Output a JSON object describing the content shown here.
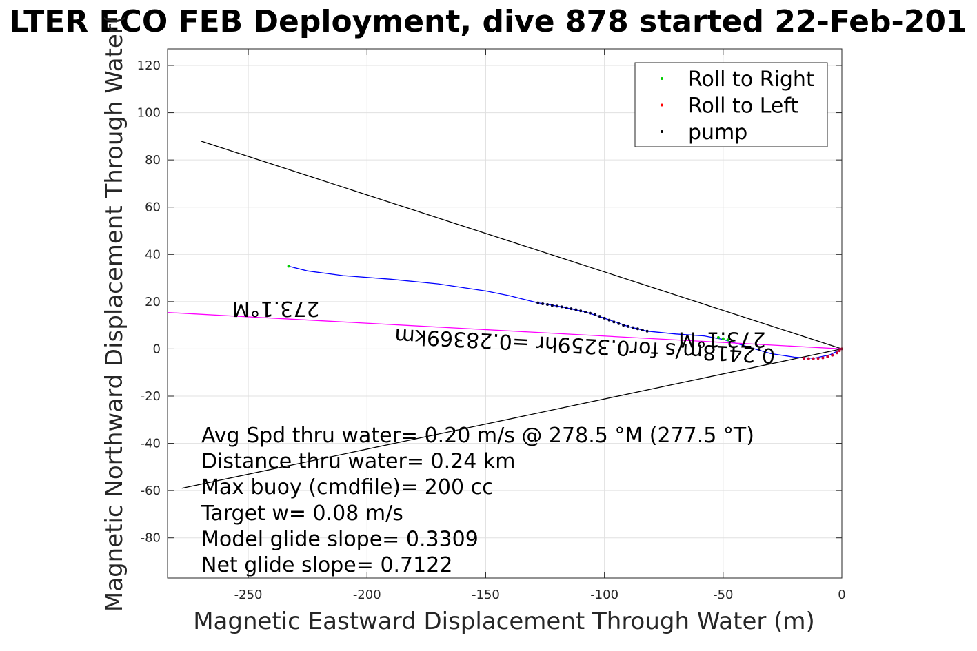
{
  "chart_data": {
    "type": "line",
    "title": "LTER ECO FEB Deployment, dive 878 started 22-Feb-201",
    "xlabel": "Magnetic Eastward Displacement Through Water (m)",
    "ylabel": "Magnetic Northward Displacement Through Water(",
    "xlim": [
      -284,
      0
    ],
    "ylim": [
      -97,
      127
    ],
    "x_ticks": [
      "-250",
      "-200",
      "-150",
      "-100",
      "-50",
      "0"
    ],
    "y_ticks": [
      "120",
      "100",
      "80",
      "60",
      "40",
      "20",
      "0",
      "-20",
      "-40",
      "-60",
      "-80"
    ],
    "grid": true,
    "legend_position": "top-right",
    "legend": [
      {
        "label": "Roll to Right",
        "color": "#00cc00"
      },
      {
        "label": "Roll to Left",
        "color": "#ff0000"
      },
      {
        "label": "pump",
        "color": "#000000"
      }
    ],
    "series": [
      {
        "type": "line",
        "color": "#0000ff",
        "points": [
          [
            -233,
            35
          ],
          [
            -225,
            33
          ],
          [
            -210,
            31
          ],
          [
            -190,
            29.5
          ],
          [
            -170,
            27.5
          ],
          [
            -150,
            24.5
          ],
          [
            -140,
            22.5
          ],
          [
            -128,
            19.5
          ],
          [
            -118,
            17.8
          ],
          [
            -108,
            15.6
          ],
          [
            -100,
            13
          ],
          [
            -90,
            9.5
          ],
          [
            -82,
            7.5
          ],
          [
            -70,
            6.3
          ],
          [
            -58,
            5.5
          ],
          [
            -50,
            4
          ],
          [
            -45,
            2.5
          ],
          [
            -40,
            1
          ],
          [
            -30,
            -2
          ],
          [
            -20,
            -3.5
          ],
          [
            -12,
            -4
          ],
          [
            -5,
            -2.5
          ],
          [
            0,
            0
          ]
        ]
      },
      {
        "type": "line",
        "color": "#000000",
        "points": [
          [
            -270,
            88
          ],
          [
            0,
            0
          ]
        ]
      },
      {
        "type": "line",
        "color": "#000000",
        "points": [
          [
            -278,
            -59
          ],
          [
            0,
            0
          ]
        ]
      },
      {
        "type": "line",
        "color": "#ff00ff",
        "points": [
          [
            -284,
            15.4
          ],
          [
            0,
            0
          ]
        ]
      }
    ],
    "pump_points": [
      [
        -128,
        19.5
      ],
      [
        -126,
        19.1
      ],
      [
        -124,
        18.8
      ],
      [
        -122,
        18.4
      ],
      [
        -120,
        18.1
      ],
      [
        -118,
        17.8
      ],
      [
        -116,
        17.4
      ],
      [
        -114,
        17.0
      ],
      [
        -112,
        16.6
      ],
      [
        -110,
        16.1
      ],
      [
        -108,
        15.6
      ],
      [
        -106,
        15.1
      ],
      [
        -104,
        14.6
      ],
      [
        -102,
        13.8
      ],
      [
        -100,
        13.0
      ],
      [
        -98,
        12.2
      ],
      [
        -96,
        11.4
      ],
      [
        -94,
        10.7
      ],
      [
        -92,
        10.0
      ],
      [
        -90,
        9.5
      ],
      [
        -88,
        9.0
      ],
      [
        -86,
        8.5
      ],
      [
        -84,
        8.0
      ],
      [
        -82,
        7.5
      ]
    ],
    "roll_left_points": [
      [
        -16,
        -4
      ],
      [
        -14,
        -4.1
      ],
      [
        -12,
        -4.1
      ],
      [
        -10,
        -4.0
      ],
      [
        -8,
        -3.8
      ],
      [
        -6,
        -3.3
      ],
      [
        -4,
        -2.7
      ],
      [
        -2,
        -1.7
      ],
      [
        -1,
        -0.8
      ],
      [
        0,
        0
      ]
    ],
    "roll_right_points": [
      [
        -233,
        35
      ],
      [
        -52,
        4.8
      ],
      [
        -50,
        4.3
      ],
      [
        -48,
        3.8
      ],
      [
        -46,
        3.3
      ]
    ],
    "annotations": [
      {
        "text": "273.1°M",
        "x": -220,
        "y": 20
      },
      {
        "text": "273.1°M",
        "x": -32,
        "y": 7
      },
      {
        "text": "0.2418m/s for0.3259hr =0.28369km",
        "x": -28,
        "y": 0
      }
    ],
    "stats": [
      "Avg Spd thru water=  0.20 m/s @ 278.5 °M (277.5 °T)",
      "Distance thru water=  0.24 km",
      "Max buoy (cmdfile)= 200 cc",
      "Target w= 0.08 m/s",
      "Model glide slope= 0.3309",
      "Net glide slope= 0.7122"
    ]
  }
}
